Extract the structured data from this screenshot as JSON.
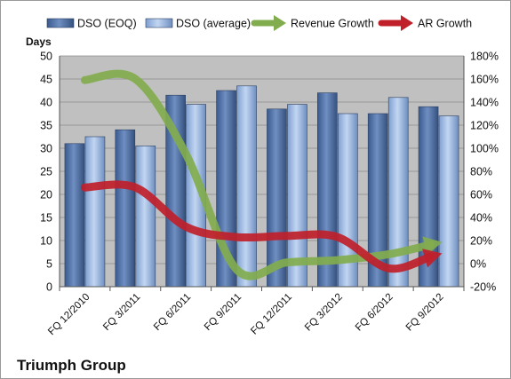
{
  "chart_data": {
    "type": "bar",
    "title": "Triumph Group",
    "ylabel": "Days",
    "categories": [
      "FQ 12/2010",
      "FQ 3/2011",
      "FQ 6/2011",
      "FQ 9/2011",
      "FQ 12/2011",
      "FQ 3/2012",
      "FQ 6/2012",
      "FQ 9/2012"
    ],
    "ylim": [
      0,
      50
    ],
    "y_ticks": [
      "0",
      "5",
      "10",
      "15",
      "20",
      "25",
      "30",
      "35",
      "40",
      "45",
      "50"
    ],
    "y2lim": [
      -20,
      180
    ],
    "y2_ticks": [
      "-20%",
      "0%",
      "20%",
      "40%",
      "60%",
      "80%",
      "100%",
      "120%",
      "140%",
      "160%",
      "180%"
    ],
    "grid": true,
    "legend_position": "top",
    "series": [
      {
        "name": "DSO (EOQ)",
        "kind": "bar",
        "axis": "left",
        "color": "#4f6fa3",
        "values": [
          31,
          34,
          41.5,
          42.5,
          38.5,
          42,
          37.5,
          39
        ]
      },
      {
        "name": "DSO (average)",
        "kind": "bar",
        "axis": "left",
        "color": "#93b4e0",
        "values": [
          32.5,
          30.5,
          39.5,
          43.5,
          39.5,
          37.5,
          41,
          37
        ]
      },
      {
        "name": "Revenue Growth",
        "kind": "arrow-line",
        "axis": "right",
        "color": "#82ad4e",
        "values": [
          159,
          160,
          95,
          -5,
          1,
          3,
          8,
          18
        ]
      },
      {
        "name": "AR Growth",
        "kind": "arrow-line",
        "axis": "right",
        "color": "#c0202a",
        "values": [
          66,
          66,
          32,
          23,
          24,
          23,
          -4,
          8
        ]
      }
    ]
  }
}
